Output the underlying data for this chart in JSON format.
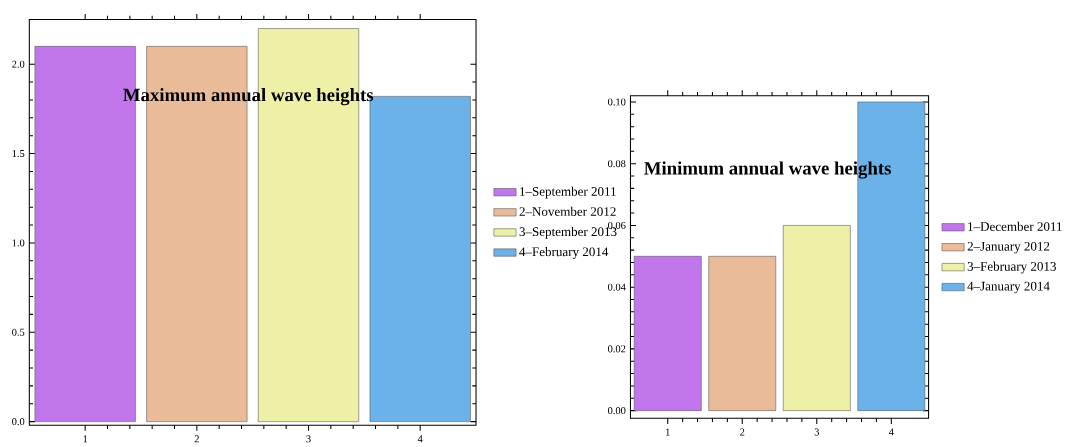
{
  "chart_data": [
    {
      "type": "bar",
      "title": "Maximum annual wave heights",
      "categories": [
        "1",
        "2",
        "3",
        "4"
      ],
      "series": [
        {
          "name": "1–September 2011",
          "color": "#c276ec",
          "values": [
            2.1,
            null,
            null,
            null
          ]
        },
        {
          "name": "2–November 2012",
          "color": "#e9bb98",
          "values": [
            null,
            2.1,
            null,
            null
          ]
        },
        {
          "name": "3–September 2013",
          "color": "#eff0a8",
          "values": [
            null,
            null,
            2.2,
            null
          ]
        },
        {
          "name": "4–February 2014",
          "color": "#6bb1ea",
          "values": [
            null,
            null,
            null,
            1.82
          ]
        }
      ],
      "ylim": [
        -0.02,
        2.25
      ],
      "yticks": [
        {
          "value": 0,
          "label": "0.0"
        },
        {
          "value": 0.5,
          "label": "0.5"
        },
        {
          "value": 1,
          "label": "1.0"
        },
        {
          "value": 1.5,
          "label": "1.5"
        },
        {
          "value": 2,
          "label": "2.0"
        }
      ],
      "legend": "right"
    },
    {
      "type": "bar",
      "title": "Minimum annual wave heights",
      "categories": [
        "1",
        "2",
        "3",
        "4"
      ],
      "series": [
        {
          "name": "1–December 2011",
          "color": "#c276ec",
          "values": [
            0.05,
            null,
            null,
            null
          ]
        },
        {
          "name": "2–January 2012",
          "color": "#e9bb98",
          "values": [
            null,
            0.05,
            null,
            null
          ]
        },
        {
          "name": "3–February 2013",
          "color": "#eff0a8",
          "values": [
            null,
            null,
            0.06,
            null
          ]
        },
        {
          "name": "4–January 2014",
          "color": "#6bb1ea",
          "values": [
            null,
            null,
            null,
            0.1
          ]
        }
      ],
      "ylim": [
        -0.0025,
        0.102
      ],
      "yticks": [
        {
          "value": 0,
          "label": "0.00"
        },
        {
          "value": 0.02,
          "label": "0.02"
        },
        {
          "value": 0.04,
          "label": "0.04"
        },
        {
          "value": 0.06,
          "label": "0.06"
        },
        {
          "value": 0.08,
          "label": "0.08"
        },
        {
          "value": 0.1,
          "label": "0.10"
        }
      ],
      "legend": "right"
    }
  ]
}
